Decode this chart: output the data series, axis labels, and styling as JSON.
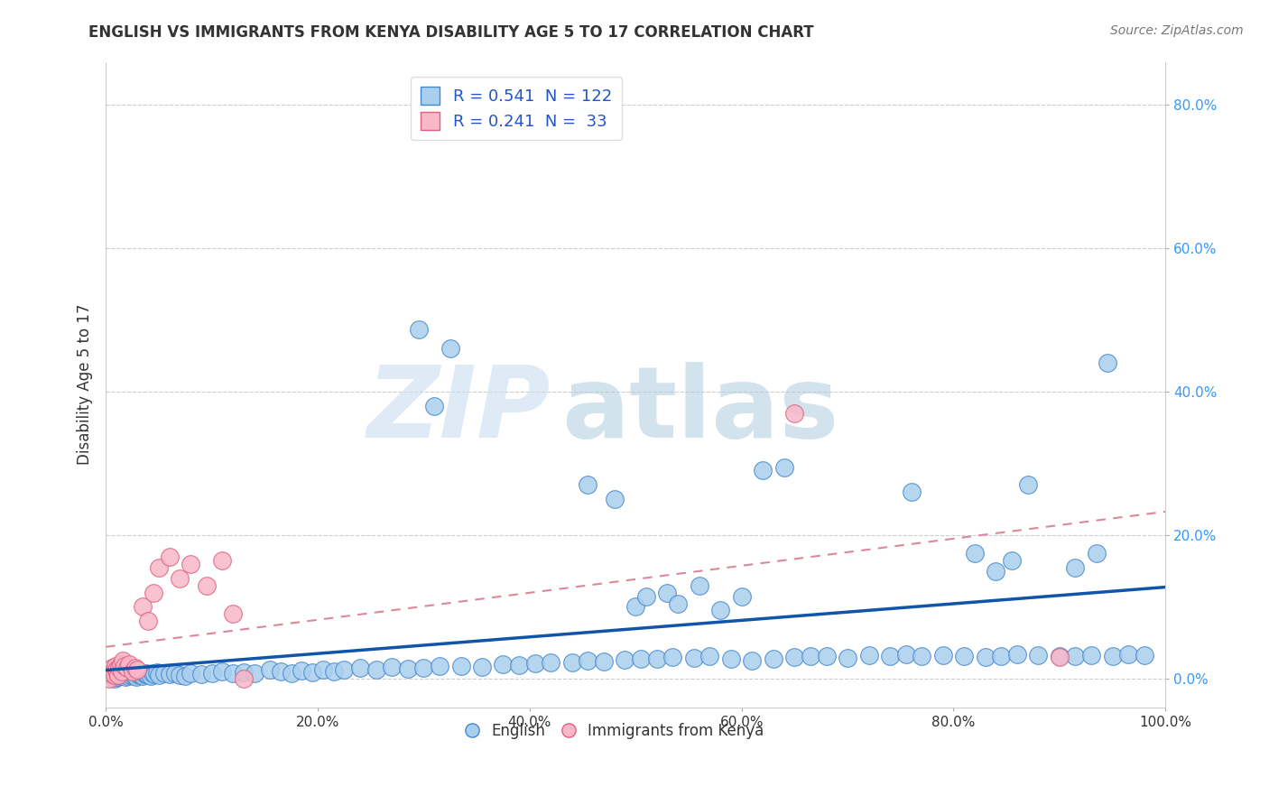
{
  "title": "ENGLISH VS IMMIGRANTS FROM KENYA DISABILITY AGE 5 TO 17 CORRELATION CHART",
  "source": "Source: ZipAtlas.com",
  "ylabel": "Disability Age 5 to 17",
  "xlim": [
    0.0,
    1.0
  ],
  "ylim": [
    -0.04,
    0.86
  ],
  "xticks": [
    0.0,
    0.2,
    0.4,
    0.6,
    0.8,
    1.0
  ],
  "xtick_labels": [
    "0.0%",
    "20.0%",
    "40.0%",
    "60.0%",
    "80.0%",
    "100.0%"
  ],
  "yticks": [
    0.0,
    0.2,
    0.4,
    0.6,
    0.8
  ],
  "ytick_labels": [
    "0.0%",
    "20.0%",
    "40.0%",
    "60.0%",
    "80.0%"
  ],
  "english_R": 0.541,
  "english_N": 122,
  "kenya_R": 0.241,
  "kenya_N": 33,
  "english_color": "#aacfee",
  "kenya_color": "#f7b8c8",
  "english_edge_color": "#4488cc",
  "kenya_edge_color": "#e06080",
  "english_line_color": "#1155aa",
  "kenya_line_color": "#dd8899",
  "watermark_zip_color": "#c8dff0",
  "watermark_atlas_color": "#b0ccdf",
  "title_color": "#333333",
  "ytick_color": "#3399ff",
  "xtick_color": "#333333",
  "legend_text_color": "#2255cc",
  "source_color": "#777777",
  "eng_x": [
    0.005,
    0.007,
    0.008,
    0.009,
    0.01,
    0.011,
    0.012,
    0.013,
    0.014,
    0.015,
    0.016,
    0.017,
    0.018,
    0.019,
    0.02,
    0.021,
    0.022,
    0.023,
    0.024,
    0.025,
    0.027,
    0.028,
    0.029,
    0.03,
    0.031,
    0.032,
    0.034,
    0.035,
    0.037,
    0.038,
    0.04,
    0.042,
    0.044,
    0.046,
    0.048,
    0.05,
    0.055,
    0.06,
    0.065,
    0.07,
    0.075,
    0.08,
    0.09,
    0.1,
    0.11,
    0.12,
    0.13,
    0.14,
    0.155,
    0.165,
    0.175,
    0.185,
    0.195,
    0.205,
    0.215,
    0.225,
    0.24,
    0.255,
    0.27,
    0.285,
    0.3,
    0.315,
    0.335,
    0.355,
    0.375,
    0.39,
    0.405,
    0.42,
    0.44,
    0.455,
    0.47,
    0.49,
    0.505,
    0.52,
    0.535,
    0.555,
    0.57,
    0.59,
    0.61,
    0.63,
    0.65,
    0.665,
    0.68,
    0.7,
    0.72,
    0.74,
    0.755,
    0.77,
    0.79,
    0.81,
    0.83,
    0.845,
    0.86,
    0.88,
    0.9,
    0.915,
    0.93,
    0.95,
    0.965,
    0.98,
    0.295,
    0.31,
    0.325,
    0.455,
    0.48,
    0.5,
    0.51,
    0.53,
    0.54,
    0.56,
    0.58,
    0.6,
    0.62,
    0.64,
    0.76,
    0.82,
    0.84,
    0.855,
    0.87,
    0.915,
    0.935,
    0.945
  ],
  "eng_y": [
    0.005,
    0.005,
    0.0,
    0.002,
    0.004,
    0.003,
    0.006,
    0.005,
    0.004,
    0.007,
    0.006,
    0.008,
    0.005,
    0.003,
    0.007,
    0.004,
    0.009,
    0.006,
    0.005,
    0.008,
    0.004,
    0.007,
    0.003,
    0.009,
    0.005,
    0.006,
    0.008,
    0.004,
    0.006,
    0.007,
    0.005,
    0.004,
    0.008,
    0.006,
    0.009,
    0.005,
    0.007,
    0.006,
    0.008,
    0.005,
    0.004,
    0.007,
    0.006,
    0.008,
    0.01,
    0.007,
    0.009,
    0.008,
    0.012,
    0.01,
    0.008,
    0.011,
    0.009,
    0.013,
    0.01,
    0.012,
    0.015,
    0.013,
    0.016,
    0.014,
    0.015,
    0.017,
    0.018,
    0.016,
    0.02,
    0.019,
    0.021,
    0.022,
    0.023,
    0.025,
    0.024,
    0.026,
    0.027,
    0.028,
    0.03,
    0.029,
    0.031,
    0.027,
    0.025,
    0.028,
    0.03,
    0.032,
    0.031,
    0.029,
    0.033,
    0.031,
    0.034,
    0.032,
    0.033,
    0.031,
    0.03,
    0.032,
    0.034,
    0.033,
    0.032,
    0.031,
    0.033,
    0.032,
    0.034,
    0.033,
    0.487,
    0.38,
    0.46,
    0.27,
    0.25,
    0.1,
    0.115,
    0.12,
    0.105,
    0.13,
    0.095,
    0.115,
    0.29,
    0.295,
    0.26,
    0.175,
    0.15,
    0.165,
    0.27,
    0.155,
    0.175,
    0.44
  ],
  "ken_x": [
    0.003,
    0.004,
    0.005,
    0.006,
    0.007,
    0.008,
    0.009,
    0.01,
    0.011,
    0.012,
    0.013,
    0.014,
    0.015,
    0.016,
    0.018,
    0.02,
    0.022,
    0.025,
    0.028,
    0.03,
    0.035,
    0.04,
    0.045,
    0.05,
    0.06,
    0.07,
    0.08,
    0.095,
    0.11,
    0.13,
    0.65,
    0.9,
    0.12
  ],
  "ken_y": [
    0.0,
    0.012,
    0.008,
    0.015,
    0.01,
    0.005,
    0.018,
    0.012,
    0.008,
    0.005,
    0.015,
    0.02,
    0.01,
    0.025,
    0.018,
    0.015,
    0.02,
    0.01,
    0.015,
    0.012,
    0.1,
    0.08,
    0.12,
    0.155,
    0.17,
    0.14,
    0.16,
    0.13,
    0.165,
    0.0,
    0.37,
    0.03,
    0.09
  ]
}
